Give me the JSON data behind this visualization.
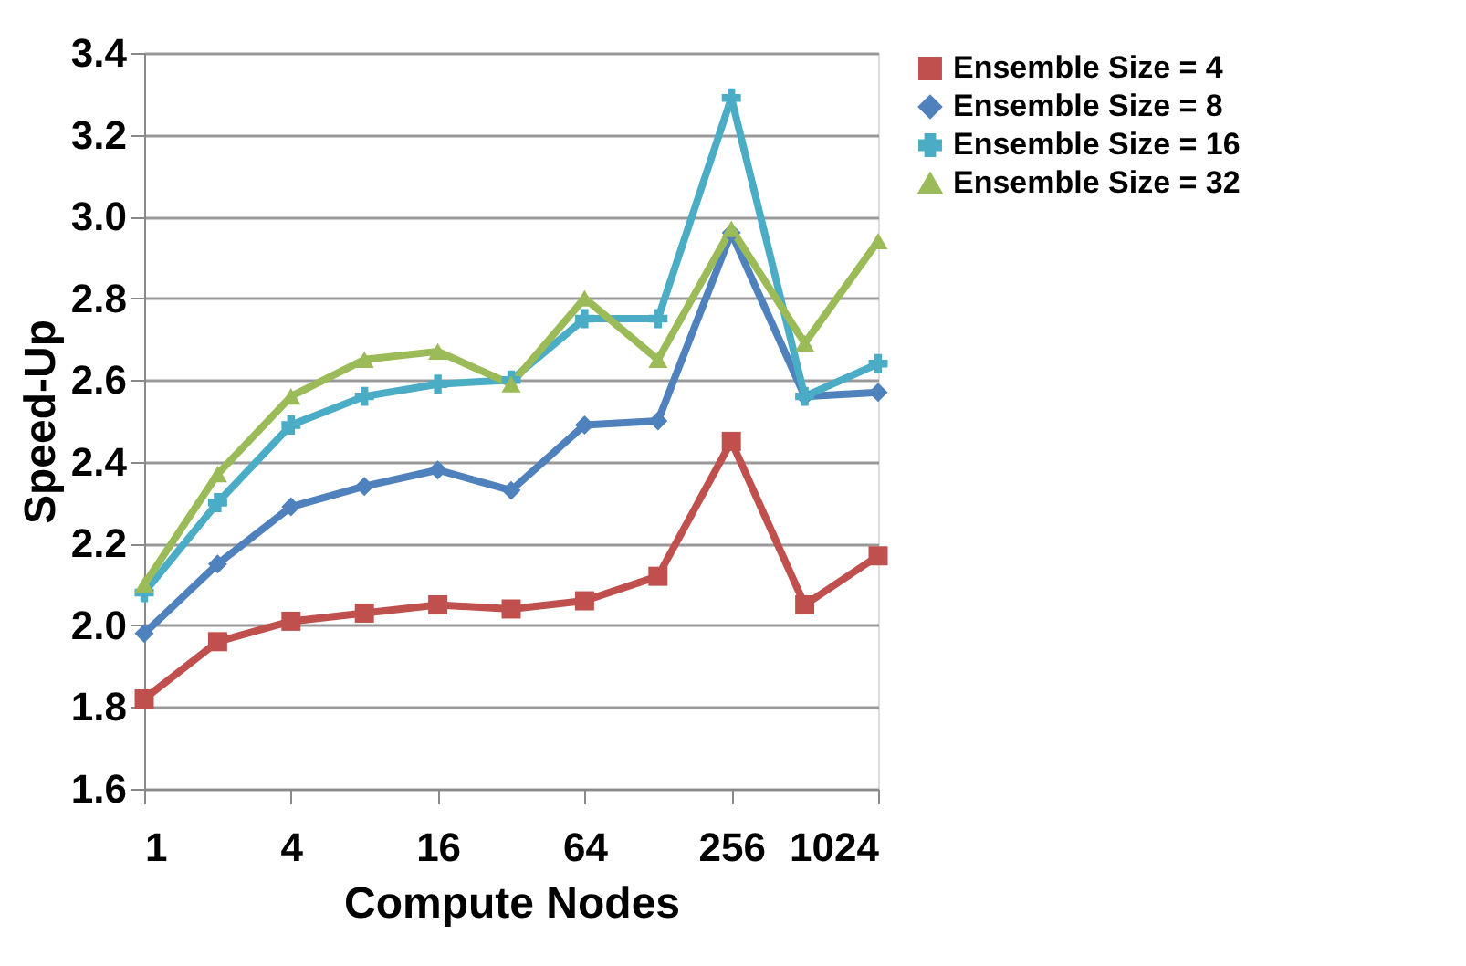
{
  "chart_data": {
    "type": "line",
    "xlabel": "Compute Nodes",
    "ylabel": "Speed-Up",
    "x": [
      1,
      2,
      4,
      8,
      16,
      32,
      64,
      128,
      256,
      512,
      1024
    ],
    "series": [
      {
        "name": "Ensemble Size = 4",
        "color": "#c0504d",
        "marker": "square",
        "values": [
          1.82,
          1.96,
          2.01,
          2.03,
          2.05,
          2.04,
          2.06,
          2.12,
          2.45,
          2.05,
          2.17
        ]
      },
      {
        "name": "Ensemble Size = 8",
        "color": "#4f81bd",
        "marker": "diamond",
        "values": [
          1.98,
          2.15,
          2.29,
          2.34,
          2.38,
          2.33,
          2.49,
          2.5,
          2.96,
          2.56,
          2.57
        ]
      },
      {
        "name": "Ensemble Size = 16",
        "color": "#4bacc6",
        "marker": "cross",
        "values": [
          2.08,
          2.3,
          2.49,
          2.56,
          2.59,
          2.6,
          2.75,
          2.75,
          3.29,
          2.56,
          2.64
        ]
      },
      {
        "name": "Ensemble Size = 32",
        "color": "#9bbb59",
        "marker": "triangle",
        "values": [
          2.1,
          2.37,
          2.56,
          2.65,
          2.67,
          2.59,
          2.8,
          2.65,
          2.97,
          2.69,
          2.94
        ]
      }
    ],
    "log": "x",
    "xlim": [
      1,
      1024
    ],
    "xticks": [
      1,
      4,
      16,
      64,
      256,
      1024
    ],
    "ylim": [
      1.6,
      3.4
    ],
    "yticks": [
      1.6,
      1.8,
      {
        "value": 2.0,
        "label": "2.0"
      },
      2.2,
      2.4,
      2.6,
      2.8,
      {
        "value": 3.0,
        "label": "3.0"
      },
      3.2,
      3.4
    ],
    "grid": "y",
    "legend": "right",
    "line_style": "solid"
  }
}
